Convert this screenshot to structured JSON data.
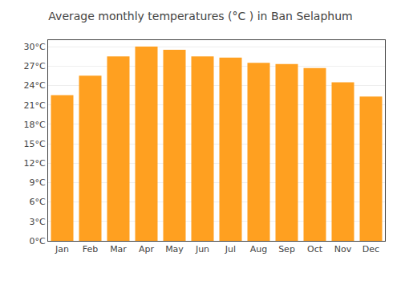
{
  "chart_data": {
    "type": "bar",
    "title": "Average monthly temperatures (°C ) in Ban Selaphum",
    "categories": [
      "Jan",
      "Feb",
      "Mar",
      "Apr",
      "May",
      "Jun",
      "Jul",
      "Aug",
      "Sep",
      "Oct",
      "Nov",
      "Dec"
    ],
    "values": [
      22.5,
      25.5,
      28.5,
      30.0,
      29.5,
      28.5,
      28.3,
      27.5,
      27.3,
      26.7,
      24.5,
      22.3
    ],
    "color": "#FFA020",
    "ylim": [
      0,
      31
    ],
    "yticks": [
      {
        "value": 0,
        "label": "0°C"
      },
      {
        "value": 3,
        "label": "3°C"
      },
      {
        "value": 6,
        "label": "6°C"
      },
      {
        "value": 9,
        "label": "9°C"
      },
      {
        "value": 12,
        "label": "12°C"
      },
      {
        "value": 15,
        "label": "15°C"
      },
      {
        "value": 18,
        "label": "18°C"
      },
      {
        "value": 21,
        "label": "21°C"
      },
      {
        "value": 24,
        "label": "24°C"
      },
      {
        "value": 27,
        "label": "27°C"
      },
      {
        "value": 30,
        "label": "30°C"
      }
    ],
    "grid": true
  }
}
